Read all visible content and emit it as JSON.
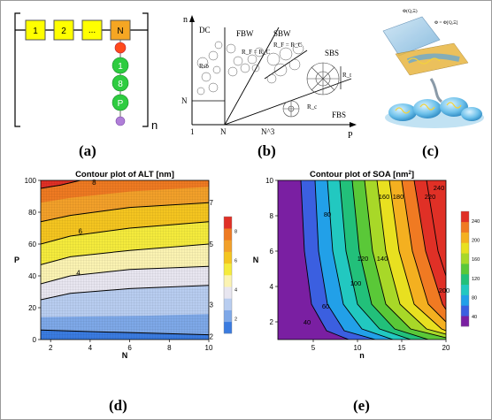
{
  "panel_labels": {
    "a": "(a)",
    "b": "(b)",
    "c": "(c)",
    "d": "(d)",
    "e": "(e)"
  },
  "panel_a": {
    "chain_boxes": [
      "1",
      "2",
      "...",
      "N"
    ],
    "side_beads": [
      "1",
      "8",
      "P"
    ],
    "repeat_subscript": "n",
    "colors": {
      "box": "#ffff00",
      "head_box": "#f5a623",
      "bead_top": "#ff4a1c",
      "bead": "#2ecc40",
      "bead_end": "#b07ed8"
    }
  },
  "panel_b": {
    "y_axis_label": "n",
    "x_axis_label": "P",
    "y_tick": "N",
    "x_ticks": [
      "1",
      "N",
      "N^3"
    ],
    "regions": [
      "DC",
      "FBW",
      "SBW",
      "SBS",
      "FBS"
    ],
    "annotations": {
      "rsb": "Rsb",
      "fbw_eq": "R_F = R_C",
      "sbw_eq": "R_F = R_C",
      "rt": "R_t",
      "rc": "R_c"
    }
  },
  "panel_c": {
    "eq_top": "Φ(Q,Ξ)",
    "eq_right": "Φ = Φ[Q,Ξ]"
  },
  "chart_data": [
    {
      "type": "contour",
      "title": "Contour plot of ALT [nm]",
      "xlabel": "N",
      "ylabel": "P",
      "xlim": [
        1.5,
        10
      ],
      "ylim": [
        0,
        100
      ],
      "x_ticks": [
        "2",
        "4",
        "6",
        "8",
        "10"
      ],
      "y_ticks": [
        "0",
        "20",
        "40",
        "60",
        "80",
        "100"
      ],
      "colorbar_ticks": [
        "2",
        "4",
        "6",
        "8"
      ],
      "contour_labels": [
        "8",
        "7",
        "6",
        "5",
        "4",
        "3",
        "2"
      ],
      "colors": [
        "#3a7be0",
        "#7ea8e8",
        "#b8cdf0",
        "#e8e6f0",
        "#fbf3b2",
        "#f5eb3c",
        "#f4c520",
        "#f2a02a",
        "#ee7a22",
        "#e03026"
      ]
    },
    {
      "type": "contour",
      "title": "Contour plot of SOA [nm",
      "title_sup": "2",
      "title_end": "]",
      "xlabel": "n",
      "ylabel": "N",
      "xlim": [
        1,
        20
      ],
      "ylim": [
        1,
        10
      ],
      "x_ticks": [
        "5",
        "10",
        "15",
        "20"
      ],
      "y_ticks": [
        "2",
        "4",
        "6",
        "8",
        "10"
      ],
      "colorbar_ticks": [
        "40",
        "80",
        "120",
        "160",
        "200",
        "240"
      ],
      "contour_labels": [
        "240",
        "220",
        "180",
        "160",
        "80",
        "120",
        "140",
        "100",
        "200",
        "60",
        "40"
      ],
      "colors": [
        "#7a1fa2",
        "#3b5fe0",
        "#22a0e8",
        "#22c8c0",
        "#22c07a",
        "#5ac838",
        "#a8d828",
        "#e8e020",
        "#f4b020",
        "#f07a22",
        "#e03026"
      ]
    }
  ]
}
